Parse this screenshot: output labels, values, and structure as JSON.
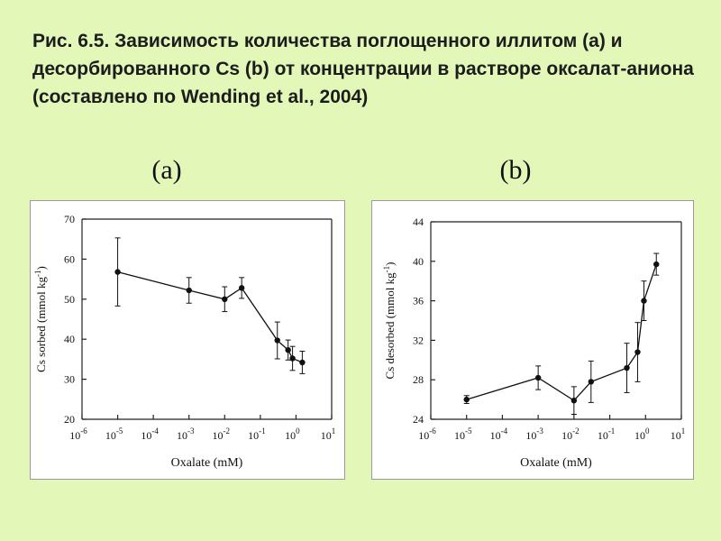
{
  "slide": {
    "caption": "Рис. 6.5. Зависимость количества поглощенного иллитом (а) и десорбированного Cs (b) от концентрации в растворе оксалат-аниона (составлено по Wending et al., 2004)",
    "panel_labels": [
      "(a)",
      "(b)"
    ]
  },
  "chart_data": [
    {
      "type": "line",
      "title": "",
      "xlabel": "Oxalate (mM)",
      "ylabel_main": "Cs sorbed (mmol kg",
      "ylabel_sup": "-1",
      "ylabel_tail": ")",
      "x_scale": "log",
      "x_ticks_exp": [
        "-6",
        "-5",
        "-4",
        "-3",
        "-2",
        "-1",
        "0",
        "1"
      ],
      "x_tick_base": "10",
      "xlim_exp": [
        -6,
        1
      ],
      "ylim": [
        20,
        70
      ],
      "y_ticks": [
        "20",
        "30",
        "40",
        "50",
        "60",
        "70"
      ],
      "grid": false,
      "marker": "filled-circle",
      "series": [
        {
          "x": [
            1e-05,
            0.001,
            0.01,
            0.03,
            0.3,
            0.6,
            0.8,
            1.5
          ],
          "y": [
            56.8,
            52.2,
            50.0,
            52.8,
            39.7,
            37.3,
            35.2,
            34.2
          ],
          "err": [
            8.5,
            3.2,
            3.1,
            2.6,
            4.6,
            2.5,
            3.0,
            2.8
          ]
        }
      ]
    },
    {
      "type": "line",
      "title": "",
      "xlabel": "Oxalate (mM)",
      "ylabel_main": "Cs desorbed (mmol kg",
      "ylabel_sup": "-1",
      "ylabel_tail": ")",
      "x_scale": "log",
      "x_ticks_exp": [
        "-6",
        "-5",
        "-4",
        "-3",
        "-2",
        "-1",
        "0",
        "1"
      ],
      "x_tick_base": "10",
      "xlim_exp": [
        -6,
        1
      ],
      "ylim": [
        24,
        44
      ],
      "y_ticks": [
        "24",
        "28",
        "32",
        "36",
        "40",
        "44"
      ],
      "grid": false,
      "marker": "filled-circle",
      "series": [
        {
          "x": [
            1e-05,
            0.001,
            0.01,
            0.03,
            0.3,
            0.6,
            0.9,
            2.0
          ],
          "y": [
            26.0,
            28.2,
            25.9,
            27.8,
            29.2,
            30.8,
            36.0,
            39.7
          ],
          "err": [
            0.4,
            1.2,
            1.4,
            2.1,
            2.5,
            3.0,
            2.0,
            1.1
          ]
        }
      ]
    }
  ]
}
